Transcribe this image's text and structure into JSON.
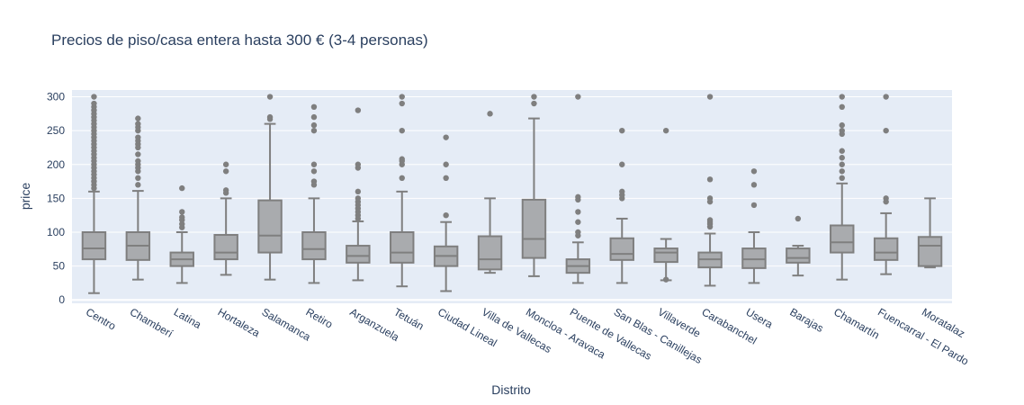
{
  "chart_data": {
    "type": "box",
    "title": "Precios de piso/casa entera hasta 300 € (3-4 personas)",
    "xlabel": "Distrito",
    "ylabel": "price",
    "ylim": [
      -5,
      310
    ],
    "yticks": [
      0,
      50,
      100,
      150,
      200,
      250,
      300
    ],
    "grid": true,
    "legend": "none",
    "colors": {
      "plot_bg": "#e5ecf6",
      "grid": "#ffffff",
      "box_fill": "#a9abae",
      "box_line": "#7f7f7f",
      "outlier": "#7f7f7f"
    },
    "categories": [
      "Centro",
      "Chamberí",
      "Latina",
      "Hortaleza",
      "Salamanca",
      "Retiro",
      "Arganzuela",
      "Tetuán",
      "Ciudad Lineal",
      "Villa de Vallecas",
      "Moncloa - Aravaca",
      "Puente de Vallecas",
      "San Blas - Canillejas",
      "Villaverde",
      "Carabanchel",
      "Usera",
      "Barajas",
      "Chamartín",
      "Fuencarral - El Pardo",
      "Moratalaz"
    ],
    "boxes": [
      {
        "min": 10,
        "q1": 60,
        "median": 76,
        "q3": 100,
        "max": 160,
        "outliers": [
          165,
          170,
          175,
          180,
          185,
          190,
          195,
          200,
          205,
          210,
          215,
          220,
          225,
          230,
          235,
          240,
          245,
          250,
          255,
          260,
          265,
          270,
          275,
          280,
          285,
          290,
          300
        ]
      },
      {
        "min": 30,
        "q1": 59,
        "median": 80,
        "q3": 100,
        "max": 161,
        "outliers": [
          170,
          180,
          190,
          195,
          200,
          205,
          215,
          225,
          230,
          235,
          240,
          250,
          255,
          260,
          268
        ]
      },
      {
        "min": 25,
        "q1": 50,
        "median": 60,
        "q3": 70,
        "max": 100,
        "outliers": [
          107,
          112,
          118,
          122,
          130,
          165
        ]
      },
      {
        "min": 37,
        "q1": 60,
        "median": 70,
        "q3": 96,
        "max": 150,
        "outliers": [
          158,
          162,
          190,
          200
        ]
      },
      {
        "min": 30,
        "q1": 70,
        "median": 95,
        "q3": 147,
        "max": 260,
        "outliers": [
          267,
          270,
          300
        ]
      },
      {
        "min": 25,
        "q1": 60,
        "median": 75,
        "q3": 100,
        "max": 150,
        "outliers": [
          170,
          175,
          190,
          200,
          250,
          258,
          270,
          285
        ]
      },
      {
        "min": 29,
        "q1": 55,
        "median": 65,
        "q3": 80,
        "max": 116,
        "outliers": [
          120,
          125,
          130,
          135,
          140,
          145,
          150,
          160,
          195,
          200,
          280
        ]
      },
      {
        "min": 20,
        "q1": 55,
        "median": 70,
        "q3": 100,
        "max": 160,
        "outliers": [
          180,
          200,
          205,
          208,
          250,
          290,
          300
        ]
      },
      {
        "min": 13,
        "q1": 50,
        "median": 65,
        "q3": 79,
        "max": 115,
        "outliers": [
          125,
          180,
          200,
          240
        ]
      },
      {
        "min": 40,
        "q1": 45,
        "median": 60,
        "q3": 94,
        "max": 150,
        "outliers": [
          275
        ]
      },
      {
        "min": 35,
        "q1": 62,
        "median": 90,
        "q3": 148,
        "max": 268,
        "outliers": [
          290,
          300
        ]
      },
      {
        "min": 25,
        "q1": 40,
        "median": 50,
        "q3": 60,
        "max": 85,
        "outliers": [
          95,
          100,
          115,
          130,
          148,
          152,
          300
        ]
      },
      {
        "min": 25,
        "q1": 59,
        "median": 68,
        "q3": 91,
        "max": 120,
        "outliers": [
          150,
          155,
          160,
          200,
          250
        ]
      },
      {
        "min": 29,
        "q1": 56,
        "median": 70,
        "q3": 76,
        "max": 90,
        "outliers": [
          30,
          250
        ]
      },
      {
        "min": 21,
        "q1": 48,
        "median": 60,
        "q3": 70,
        "max": 98,
        "outliers": [
          108,
          112,
          115,
          118,
          145,
          150,
          178,
          300
        ]
      },
      {
        "min": 25,
        "q1": 47,
        "median": 60,
        "q3": 76,
        "max": 100,
        "outliers": [
          140,
          170,
          190
        ]
      },
      {
        "min": 36,
        "q1": 55,
        "median": 62,
        "q3": 76,
        "max": 80,
        "outliers": [
          120
        ]
      },
      {
        "min": 30,
        "q1": 70,
        "median": 85,
        "q3": 110,
        "max": 172,
        "outliers": [
          180,
          190,
          200,
          210,
          220,
          245,
          250,
          258,
          285,
          300
        ]
      },
      {
        "min": 38,
        "q1": 59,
        "median": 70,
        "q3": 91,
        "max": 128,
        "outliers": [
          145,
          150,
          250,
          300
        ]
      },
      {
        "min": 48,
        "q1": 50,
        "median": 80,
        "q3": 93,
        "max": 150,
        "outliers": []
      }
    ]
  }
}
